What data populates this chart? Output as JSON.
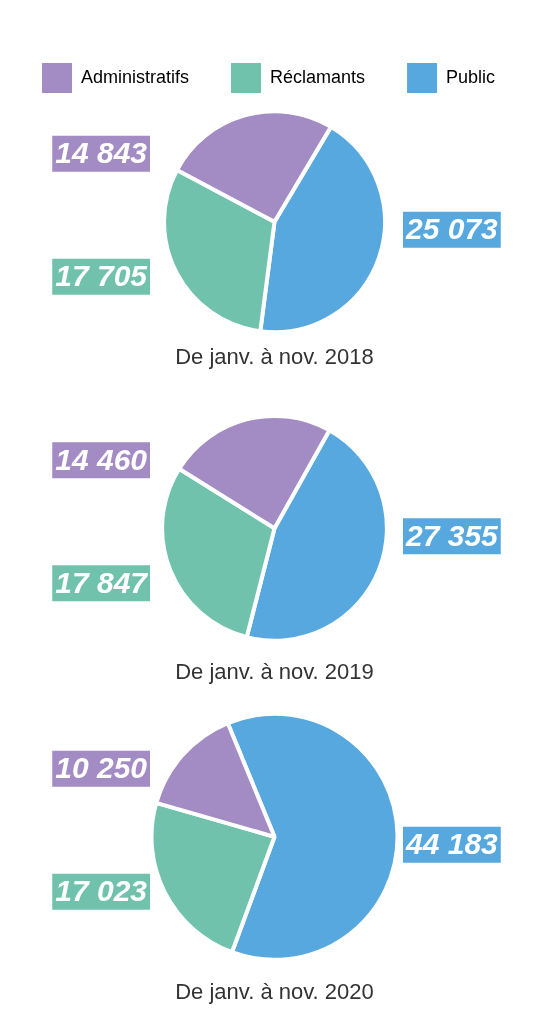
{
  "chart_data": [
    {
      "type": "pie",
      "title": "De janv. à nov. 2018",
      "legend": "top left",
      "categories": [
        "Administratifs",
        "Réclamants",
        "Public"
      ],
      "values": [
        14843,
        17705,
        25073
      ],
      "colors": [
        "#a38bc3",
        "#70c2ad",
        "#56a8de"
      ],
      "value_labels": [
        "14 843",
        "17 705",
        "25 073"
      ]
    },
    {
      "type": "pie",
      "title": "De janv. à nov. 2019",
      "legend": false,
      "categories": [
        null,
        null,
        null
      ],
      "values": [
        14460,
        17847,
        27355
      ],
      "colors": [
        "#a38bc3",
        "#70c2ad",
        "#56a8de"
      ],
      "value_labels": [
        "14 460",
        "17 847",
        "27 355"
      ]
    },
    {
      "type": "pie",
      "title": "De janv. à nov. 2020",
      "legend": false,
      "categories": [
        null,
        null,
        null
      ],
      "values": [
        10250,
        17023,
        44183
      ],
      "colors": [
        "#a38bc3",
        "#70c2ad",
        "#56a8de"
      ],
      "value_labels": [
        "10 250",
        "17 023",
        "44 183"
      ]
    }
  ]
}
